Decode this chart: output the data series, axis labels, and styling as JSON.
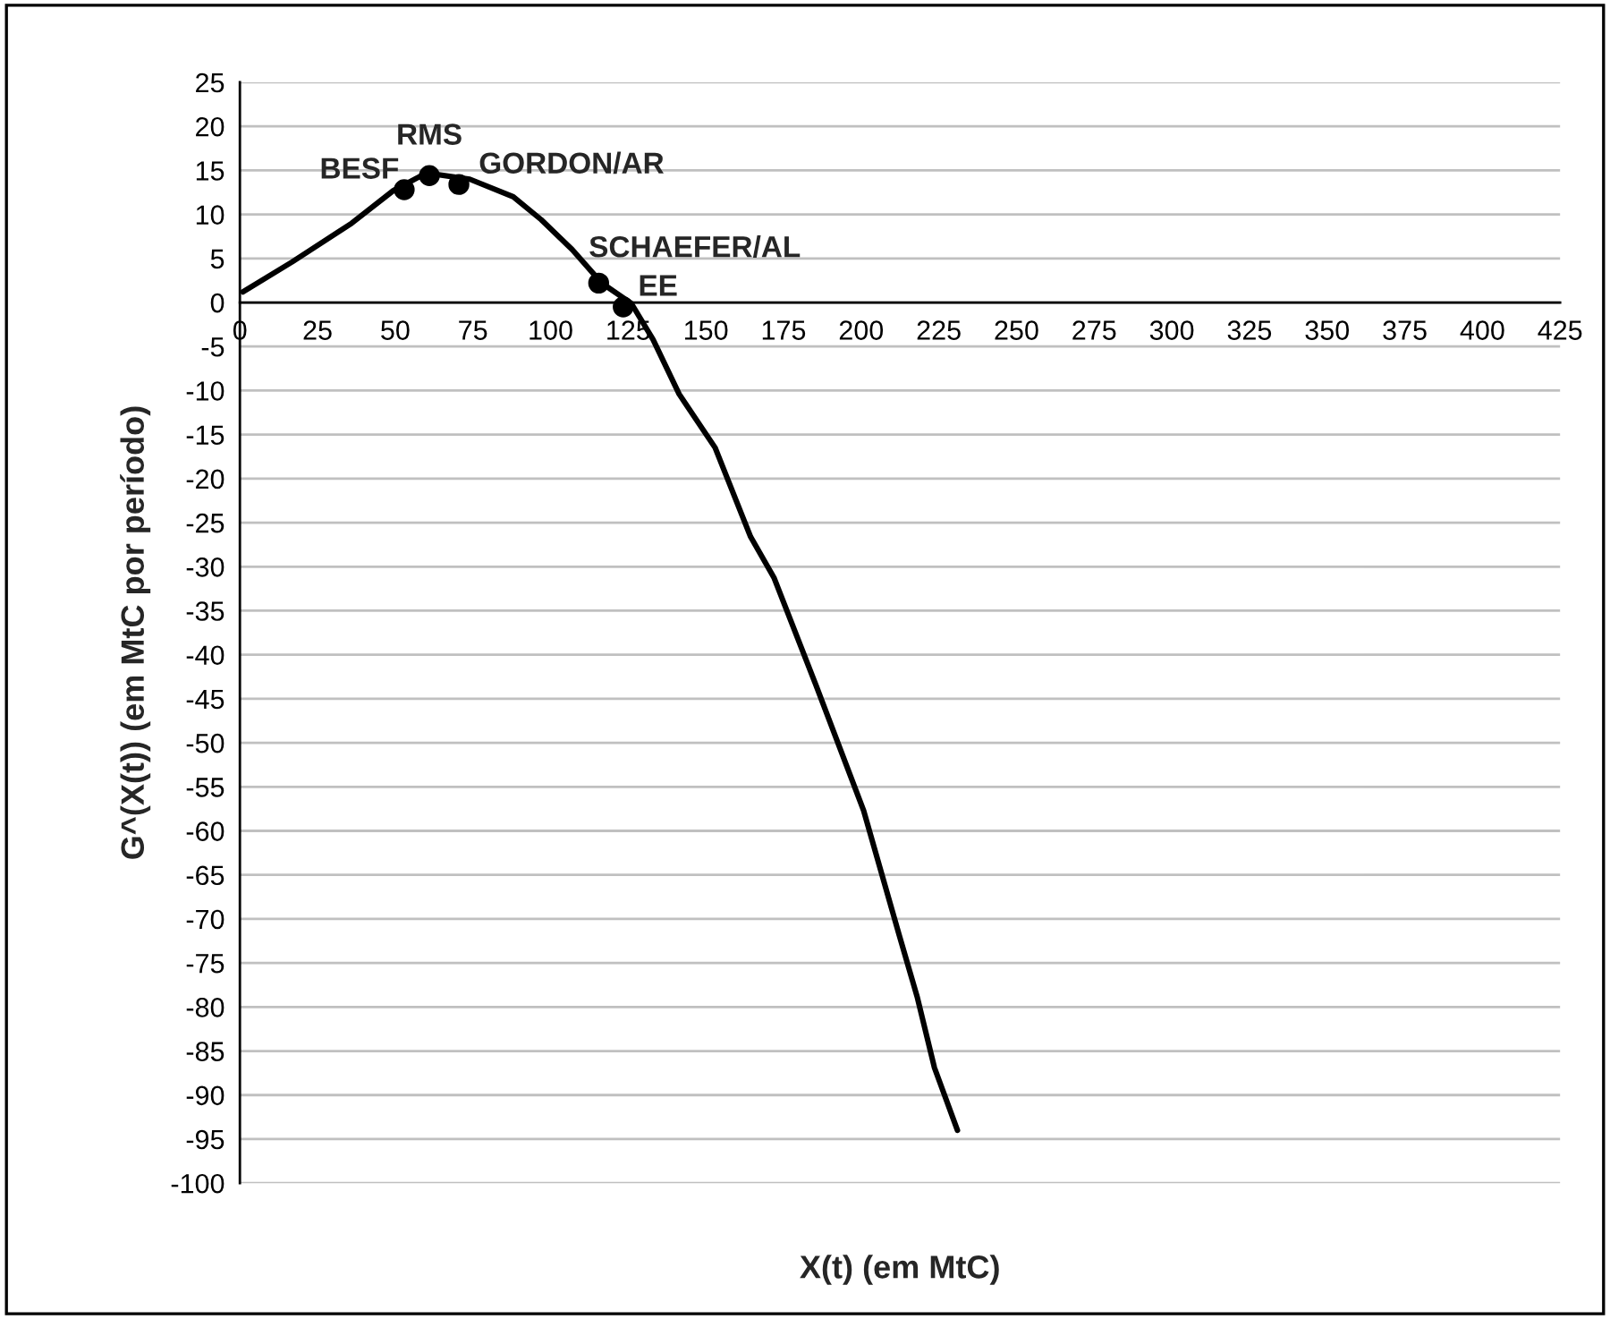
{
  "chart_data": {
    "type": "line",
    "xlabel": "X(t) (em MtC)",
    "ylabel": "G^(X(t)) (em MtC por período)",
    "series": [
      {
        "color": "#000000",
        "marker": "none",
        "x": [
          1,
          16.8,
          36,
          49.4,
          60,
          74,
          88,
          97,
          107,
          116.5,
          126,
          133,
          141.4,
          153,
          164.4,
          172,
          185.5,
          200.8,
          212.3,
          218,
          223.6,
          231
        ],
        "values": [
          1.2,
          4.6,
          9,
          12.7,
          14.7,
          14,
          12,
          9.4,
          6,
          2.2,
          -0.1,
          -4.2,
          -10.4,
          -16.5,
          -26.6,
          -31.3,
          -43.5,
          -57.7,
          -71.9,
          -78.8,
          -86.9,
          -94
        ]
      },
      {
        "type": "scatter",
        "color": "#000000",
        "marker": "circle",
        "x": [
          52.9,
          61,
          70.5,
          115.5,
          123.4
        ],
        "values": [
          12.8,
          14.4,
          13.4,
          2.2,
          -0.5
        ]
      }
    ],
    "annotations": [
      {
        "text": "BESF",
        "x": 52.9,
        "y": 12.8
      },
      {
        "text": "RMS",
        "x": 61,
        "y": 14.4
      },
      {
        "text": "GORDON/AR",
        "x": 70.5,
        "y": 13.4
      },
      {
        "text": "SCHAEFER/AL",
        "x": 115.5,
        "y": 2.2
      },
      {
        "text": "EE",
        "x": 123.4,
        "y": -0.5
      }
    ],
    "xlim": [
      0,
      425
    ],
    "xticks": [
      0,
      25,
      50,
      75,
      100,
      125,
      150,
      175,
      200,
      225,
      250,
      275,
      300,
      325,
      350,
      375,
      400,
      425
    ],
    "ylim": [
      -100,
      25
    ],
    "yticks": [
      -100,
      -95,
      -90,
      -85,
      -80,
      -75,
      -70,
      -65,
      -60,
      -55,
      -50,
      -45,
      -40,
      -35,
      -30,
      -25,
      -20,
      -15,
      -10,
      -5,
      0,
      5,
      10,
      15,
      20,
      25
    ],
    "grid": "y",
    "legend": false
  }
}
